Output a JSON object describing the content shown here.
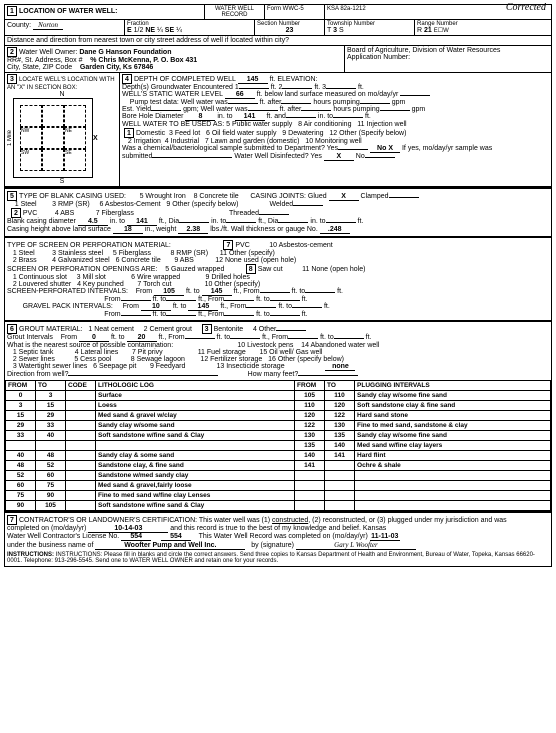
{
  "corrected": "Corrected",
  "header": {
    "title": "WATER WELL RECORD",
    "form": "Form WWC-5",
    "ksa": "KSA 82a-1212"
  },
  "s1": {
    "label": "LOCATION OF WATER WELL:",
    "county_lbl": "County:",
    "county": "Norton",
    "fraction": "Fraction",
    "e": "E",
    "half": "1/2",
    "ne": "NE",
    "q1": "¼",
    "se": "SE",
    "q2": "¼",
    "sec_lbl": "Section Number",
    "sec": "23",
    "twp_lbl": "Township Number",
    "twp_t": "T",
    "twp": "3",
    "twp_s": "S",
    "rng_lbl": "Range Number",
    "rng_r": "R",
    "rng": "21",
    "rng_ew": "E☐W",
    "dist": "Distance and direction from nearest town or city street address of well if located within city?"
  },
  "s2": {
    "label": "Water Well Owner:",
    "owner": "Dane G Hanson Foundation",
    "addr_lbl": "RR#, St. Address, Box #",
    "addr": "% Chris McKenna, P. O. Box 431",
    "city_lbl": "City, State, ZIP Code",
    "city": "Garden City, Ks  67846",
    "board": "Board of Agriculture, Division of Water Resources",
    "app": "Application Number:"
  },
  "s3": {
    "label": "LOCATE WELL'S LOCATION WITH AN \"X\" IN SECTION BOX:",
    "n": "N",
    "s": "S",
    "e_side": "X",
    "mile": "1 Mile",
    "nw": "NW",
    "ne": "NE",
    "sw": "SW",
    "se": "SE"
  },
  "s4": {
    "label": "DEPTH OF COMPLETED WELL",
    "depth": "145",
    "elev": "ft. ELEVATION:",
    "depths_lbl": "Depth(s) Groundwater Encountered",
    "d1": "1",
    "d2": "ft.  2",
    "d3": "ft.  3",
    "df": "ft.",
    "static_lbl": "WELL'S STATIC WATER LEVEL",
    "static": "66",
    "static_suf": "ft. below land surface measured on mo/day/yr",
    "pump_lbl": "Pump test data:",
    "ww": "Well water was",
    "wwu": "ft. after",
    "hrs": "hours pumping",
    "gpm": "gpm",
    "est_lbl": "Est. Yield",
    "gpm2": "gpm;",
    "bore_lbl": "Bore Hole Diameter",
    "bore": "8",
    "into": "in. to",
    "bore2": "141",
    "ftand": "ft. and",
    "into2": "in. to",
    "ft2": "ft.",
    "use_lbl": "WELL WATER TO BE USED AS:",
    "u1": "Domestic",
    "u2": "Irrigation",
    "u3": "Feed lot",
    "u4": "Industrial",
    "u5": "Public water supply",
    "u6": "Oil field water supply",
    "u7": "Lawn and garden (domestic)",
    "u8": "Air conditioning",
    "u9": "Dewatering",
    "u10": "Monitoring well",
    "u11": "Injection well",
    "u12": "Other (Specify below)",
    "chem": "Was a chemical/bacteriological sample submitted to Department? Yes",
    "nox": "No  X",
    "ifyes": "If yes, mo/day/yr sample was",
    "sub": "submitted",
    "disinf": "Water Well Disinfected? Yes",
    "dx": "X",
    "no": "No"
  },
  "s5": {
    "label": "TYPE OF BLANK CASING USED:",
    "o1": "1  Steel",
    "o2": "PVC",
    "o3": "3  RMP (SR)",
    "o4": "4  ABS",
    "o5": "5  Wrought Iron",
    "o6": "6  Asbestos-Cement",
    "o7": "7  Fiberglass",
    "o8": "8  Concrete tile",
    "o9": "9  Other (specify below)",
    "joints": "CASING JOINTS: Glued",
    "gx": "X",
    "clamped": "Clamped",
    "welded": "Welded",
    "threaded": "Threaded",
    "bcd": "Blank casing diameter",
    "bcd1": "4.5",
    "bcd_in": "in. to",
    "bcd2": "141",
    "fd": "ft., Dia",
    "fd_in": "in. to",
    "fd2": "ft., Dia",
    "fd3": "in. to",
    "fd4": "ft.",
    "chals": "Casing height above land surface",
    "chals_v": "18",
    "chals_in": "in., weight",
    "chals_w": "2.38",
    "chals_suf": "lbs./ft. Wall thickness or gauge No.",
    "chals_g": ".248"
  },
  "s6": {
    "label": "TYPE OF SCREEN OR PERFORATION MATERIAL:",
    "o1": "1  Steel",
    "o2": "2  Brass",
    "o3": "3  Stainless steel",
    "o4": "4  Galvanized steel",
    "o5": "5  Fiberglass",
    "o6": "6  Concrete tile",
    "o7": "PVC",
    "o8": "8  RMP (SR)",
    "o9": "9  ABS",
    "o10": "10  Asbestos-cement",
    "o11": "11  Other (specify)",
    "o12": "12  None used (open hole)",
    "open": "SCREEN OR PERFORATION OPENINGS ARE:",
    "p1": "1  Continuous slot",
    "p2": "2  Louvered shutter",
    "p3": "3  Mill slot",
    "p4": "4  Key punched",
    "p5": "5  Gauzed wrapped",
    "p6": "6  Wire wrapped",
    "p7": "7  Torch cut",
    "p8": "Saw cut",
    "p9": "9  Drilled holes",
    "p10": "10  Other (specify)",
    "p11": "11  None (open hole)",
    "spi": "SCREEN-PERFORATED INTERVALS:",
    "from": "From",
    "spi1": "105",
    "to": "ft. to",
    "spi2": "145",
    "fend": "ft., From",
    "fto": "ft. to",
    "ft": "ft.",
    "gpi": "GRAVEL PACK INTERVALS:",
    "gpi1": "10",
    "gpi2": "145"
  },
  "grout": {
    "label": "GROUT MATERIAL:",
    "o1": "1  Neat cement",
    "o2": "2  Cement grout",
    "o3": "Bentonite",
    "o4": "4  Other",
    "gi": "Grout Intervals",
    "from": "From",
    "v1": "0",
    "to": "ft. to",
    "v2": "20",
    "fend": "ft., From",
    "fto": "ft. to",
    "ft": "ft.",
    "near": "What is the nearest source of possible contamination:",
    "c1": "1  Septic tank",
    "c2": "2  Sewer lines",
    "c3": "3  Watertight sewer lines",
    "c4": "4  Lateral lines",
    "c5": "5  Cess pool",
    "c6": "6  Seepage pit",
    "c7": "7  Pit privy",
    "c8": "8  Sewage lagoon",
    "c9": "9  Feedyard",
    "c10": "10  Livestock pens",
    "c11": "11  Fuel storage",
    "c12": "12  Fertilizer storage",
    "c13": "13  Insecticide storage",
    "c14": "14  Abandoned water well",
    "c15": "15  Oil well/ Gas well",
    "c16": "16  Other (specify below)",
    "c16v": "none",
    "dir": "Direction from well?",
    "many": "How many feet?"
  },
  "log": {
    "h1": "FROM",
    "h2": "TO",
    "h3": "CODE",
    "h4": "LITHOLOGIC LOG",
    "h5": "FROM",
    "h6": "TO",
    "h7": "PLUGGING INTERVALS",
    "r": [
      [
        "0",
        "3",
        "",
        "Surface",
        "105",
        "110",
        "Sandy clay w/some fine sand"
      ],
      [
        "3",
        "15",
        "",
        "Loess",
        "110",
        "120",
        "Soft sandstone clay & fine sand"
      ],
      [
        "15",
        "29",
        "",
        "Med sand & gravel w/clay",
        "120",
        "122",
        "Hard sand stone"
      ],
      [
        "29",
        "33",
        "",
        "Sandy clay w/some sand",
        "122",
        "130",
        "Fine to med sand, sandstone & clay"
      ],
      [
        "33",
        "40",
        "",
        "Soft sandstone w/fine sand & Clay",
        "130",
        "135",
        "Sandy clay w/some fine sand"
      ],
      [
        "",
        "",
        "",
        "",
        "135",
        "140",
        "Med sand w/fine clay layers"
      ],
      [
        "40",
        "48",
        "",
        "Sandy clay & some sand",
        "140",
        "141",
        "Hard flint"
      ],
      [
        "48",
        "52",
        "",
        "Sandstone clay, & fine sand",
        "141",
        "",
        "Ochre & shale"
      ],
      [
        "52",
        "60",
        "",
        "Sandstone w/med sandy clay",
        "",
        "",
        ""
      ],
      [
        "60",
        "75",
        "",
        "Med sand & gravel,fairly loose",
        "",
        "",
        ""
      ],
      [
        "75",
        "90",
        "",
        "Fine to med sand w/fine clay Lenses",
        "",
        "",
        ""
      ],
      [
        "90",
        "105",
        "",
        "Soft sandstone w/fine sand & Clay",
        "",
        "",
        ""
      ]
    ]
  },
  "s7": {
    "label": "CONTRACTOR'S OR LANDOWNER'S CERTIFICATION: This water well was (1)",
    "con": "constructed",
    "rest": ", (2) reconstructed, or (3) plugged under my jurisdiction and was",
    "comp_lbl": "completed on (mo/day/yr)",
    "comp": "10-14-03",
    "true": "and this record is true to the best of my knowledge and belief. Kansas",
    "lic_lbl": "Water Well Contractor's License No.",
    "lic": "554",
    "lic2": "554",
    "rec": "This Water Well Record was completed on (mo/day/yr)",
    "rec_d": "11-11-03",
    "bus_lbl": "under the business name of",
    "bus": "Woofter Pump and Well Inc.",
    "sig": "by (signature)",
    "instr": "INSTRUCTIONS:  Please fill in blanks and circle the correct answers.  Send three copies to Kansas Department of Health and Environment, Bureau of Water, Topeka, Kansas 66620-0001. Telephone: 913-296-5545. Send one to WATER WELL OWNER and retain one for your records."
  }
}
